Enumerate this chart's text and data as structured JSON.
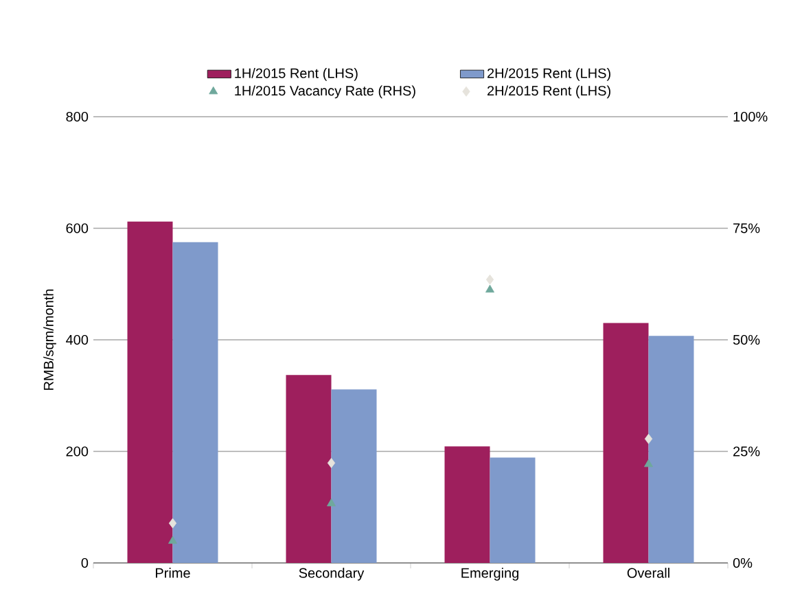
{
  "chart_data": {
    "type": "bar",
    "ylabel": "RMB/sqm/month",
    "categories": [
      "Prime",
      "Secondary",
      "Emerging",
      "Overall"
    ],
    "series": [
      {
        "name": "1H/2015 Rent (LHS)",
        "color": "#9e1f5d",
        "values": [
          612,
          337,
          209,
          430
        ]
      },
      {
        "name": "2H/2015 Rent (LHS)",
        "color": "#7f9acb",
        "values": [
          575,
          311,
          189,
          407
        ]
      },
      {
        "name": "1H/2015 Vacancy Rate (RHS)",
        "type": "scatter",
        "marker": "triangle",
        "axis": "y2",
        "color": "#6fa89c",
        "values": [
          4.9,
          13.3,
          61.2,
          22.1
        ]
      },
      {
        "name": "2H/2015 Rent (LHS)",
        "type": "scatter",
        "marker": "diamond",
        "axis": "y2",
        "color": "#e6e3dc",
        "values": [
          8.9,
          22.4,
          63.5,
          27.8
        ]
      }
    ],
    "ylim": [
      0,
      800
    ],
    "yticks": [
      0,
      200,
      400,
      600,
      800
    ],
    "y2lim": [
      0,
      100
    ],
    "y2ticks": [
      {
        "value": 0,
        "label": "0%"
      },
      {
        "value": 25,
        "label": "25%"
      },
      {
        "value": 50,
        "label": "50%"
      },
      {
        "value": 75,
        "label": "75%"
      },
      {
        "value": 100,
        "label": "100%"
      }
    ],
    "grid": "y",
    "legend": "top"
  }
}
